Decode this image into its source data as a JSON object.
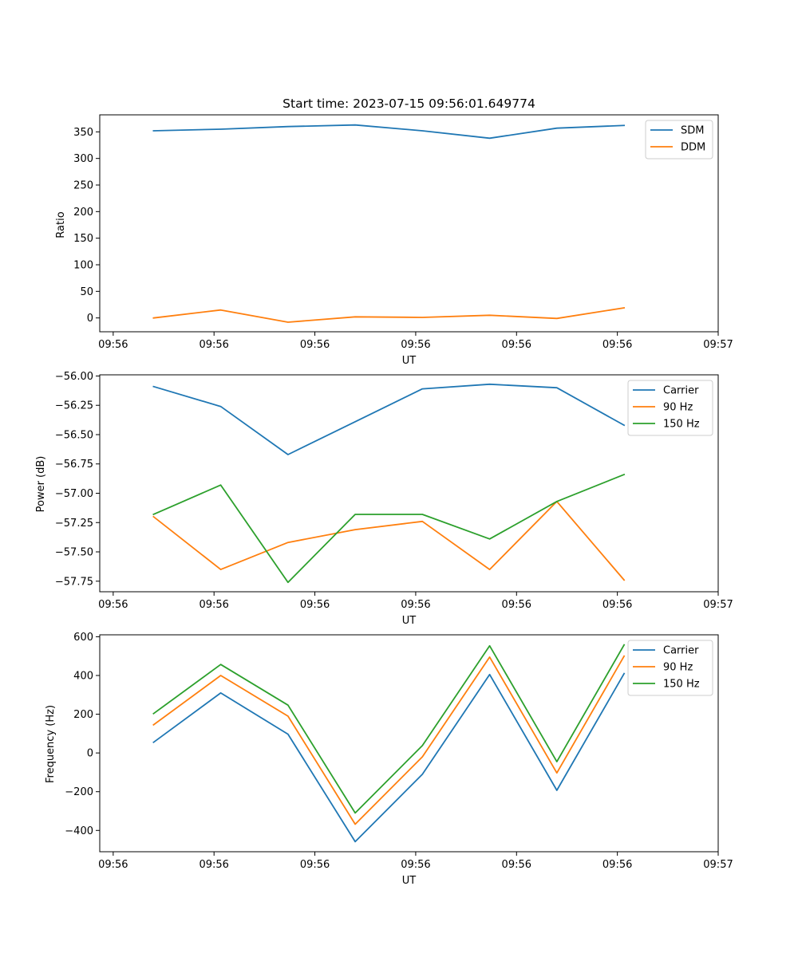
{
  "colors": {
    "c0": "#1f77b4",
    "c1": "#ff7f0e",
    "c2": "#2ca02c"
  },
  "chart_data": [
    {
      "type": "line",
      "title": "Start time: 2023-07-15 09:56:01.649774",
      "xlabel": "UT",
      "ylabel": "Ratio",
      "x": [
        1,
        2,
        3,
        4,
        5,
        6,
        7,
        8
      ],
      "xlim": [
        0.2,
        9.4
      ],
      "xticks": [
        0.4,
        1.9,
        3.4,
        4.9,
        6.4,
        7.9,
        9.4
      ],
      "xtick_labels": [
        "09:56",
        "09:56",
        "09:56",
        "09:56",
        "09:56",
        "09:56",
        "09:57"
      ],
      "ylim": [
        -26,
        382
      ],
      "yticks": [
        0,
        50,
        100,
        150,
        200,
        250,
        300,
        350
      ],
      "ytick_labels": [
        "0",
        "50",
        "100",
        "150",
        "200",
        "250",
        "300",
        "350"
      ],
      "legend": "top-right",
      "series": [
        {
          "name": "SDM",
          "color": "#1f77b4",
          "values": [
            352,
            355,
            360,
            363,
            352,
            338,
            357,
            362
          ]
        },
        {
          "name": "DDM",
          "color": "#ff7f0e",
          "values": [
            0,
            15,
            -8,
            2,
            1,
            5,
            -1,
            19
          ]
        }
      ]
    },
    {
      "type": "line",
      "title": "",
      "xlabel": "UT",
      "ylabel": "Power (dB)",
      "x": [
        1,
        2,
        3,
        4,
        5,
        6,
        7,
        8
      ],
      "xlim": [
        0.2,
        9.4
      ],
      "xticks": [
        0.4,
        1.9,
        3.4,
        4.9,
        6.4,
        7.9,
        9.4
      ],
      "xtick_labels": [
        "09:56",
        "09:56",
        "09:56",
        "09:56",
        "09:56",
        "09:56",
        "09:57"
      ],
      "ylim": [
        -57.84,
        -55.99
      ],
      "yticks": [
        -56.0,
        -56.25,
        -56.5,
        -56.75,
        -57.0,
        -57.25,
        -57.5,
        -57.75
      ],
      "ytick_labels": [
        "−56.00",
        "−56.25",
        "−56.50",
        "−56.75",
        "−57.00",
        "−57.25",
        "−57.50",
        "−57.75"
      ],
      "legend": "top-right",
      "series": [
        {
          "name": "Carrier",
          "color": "#1f77b4",
          "values": [
            -56.09,
            -56.26,
            -56.67,
            -56.39,
            -56.11,
            -56.07,
            -56.1,
            -56.42
          ]
        },
        {
          "name": "90 Hz",
          "color": "#ff7f0e",
          "values": [
            -57.2,
            -57.65,
            -57.42,
            -57.31,
            -57.24,
            -57.65,
            -57.07,
            -57.74
          ]
        },
        {
          "name": "150 Hz",
          "color": "#2ca02c",
          "values": [
            -57.18,
            -56.93,
            -57.76,
            -57.18,
            -57.18,
            -57.39,
            -57.07,
            -56.84
          ]
        }
      ]
    },
    {
      "type": "line",
      "title": "",
      "xlabel": "UT",
      "ylabel": "Frequency (Hz)",
      "x": [
        1,
        2,
        3,
        4,
        5,
        6,
        7,
        8
      ],
      "xlim": [
        0.2,
        9.4
      ],
      "xticks": [
        0.4,
        1.9,
        3.4,
        4.9,
        6.4,
        7.9,
        9.4
      ],
      "xtick_labels": [
        "09:56",
        "09:56",
        "09:56",
        "09:56",
        "09:56",
        "09:56",
        "09:57"
      ],
      "ylim": [
        -510,
        610
      ],
      "yticks": [
        -400,
        -200,
        0,
        200,
        400,
        600
      ],
      "ytick_labels": [
        "−400",
        "−200",
        "0",
        "200",
        "400",
        "600"
      ],
      "legend": "top-right",
      "series": [
        {
          "name": "Carrier",
          "color": "#1f77b4",
          "values": [
            55,
            310,
            97,
            -458,
            -110,
            405,
            -193,
            410
          ]
        },
        {
          "name": "90 Hz",
          "color": "#ff7f0e",
          "values": [
            145,
            400,
            190,
            -368,
            -20,
            495,
            -103,
            500
          ]
        },
        {
          "name": "150 Hz",
          "color": "#2ca02c",
          "values": [
            203,
            457,
            247,
            -310,
            38,
            553,
            -45,
            558
          ]
        }
      ]
    }
  ]
}
